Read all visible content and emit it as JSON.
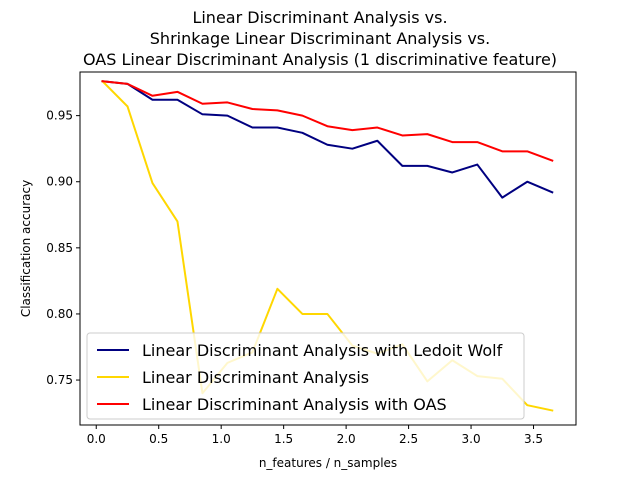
{
  "chart_data": {
    "type": "line",
    "title_lines": [
      "Linear Discriminant Analysis vs.",
      "Shrinkage Linear Discriminant Analysis vs.",
      "OAS Linear Discriminant Analysis (1 discriminative feature)"
    ],
    "xlabel": "n_features / n_samples",
    "ylabel": "Classification accuracy",
    "xlim": [
      -0.13,
      3.84
    ],
    "ylim": [
      0.716,
      0.983
    ],
    "xticks": [
      0.0,
      0.5,
      1.0,
      1.5,
      2.0,
      2.5,
      3.0,
      3.5
    ],
    "xtick_labels": [
      "0.0",
      "0.5",
      "1.0",
      "1.5",
      "2.0",
      "2.5",
      "3.0",
      "3.5"
    ],
    "yticks": [
      0.75,
      0.8,
      0.85,
      0.9,
      0.95
    ],
    "ytick_labels": [
      "0.75",
      "0.80",
      "0.85",
      "0.90",
      "0.95"
    ],
    "x": [
      0.05,
      0.25,
      0.45,
      0.65,
      0.85,
      1.05,
      1.25,
      1.45,
      1.65,
      1.85,
      2.05,
      2.25,
      2.45,
      2.65,
      2.85,
      3.05,
      3.25,
      3.45,
      3.65
    ],
    "legend_position": "lower-left",
    "series": [
      {
        "name": "Linear Discriminant Analysis with Ledoit Wolf",
        "color": "#000080",
        "values": [
          0.976,
          0.974,
          0.962,
          0.962,
          0.951,
          0.95,
          0.941,
          0.941,
          0.937,
          0.928,
          0.925,
          0.931,
          0.912,
          0.912,
          0.907,
          0.913,
          0.888,
          0.9,
          0.892
        ]
      },
      {
        "name": "Linear Discriminant Analysis",
        "color": "#ffd700",
        "values": [
          0.976,
          0.957,
          0.899,
          0.87,
          0.74,
          0.763,
          0.771,
          0.819,
          0.8,
          0.8,
          0.776,
          0.77,
          0.777,
          0.749,
          0.765,
          0.753,
          0.751,
          0.731,
          0.727
        ]
      },
      {
        "name": "Linear Discriminant Analysis with OAS",
        "color": "#ff0000",
        "values": [
          0.976,
          0.974,
          0.965,
          0.968,
          0.959,
          0.96,
          0.955,
          0.954,
          0.95,
          0.942,
          0.939,
          0.941,
          0.935,
          0.936,
          0.93,
          0.93,
          0.923,
          0.923,
          0.916
        ]
      }
    ]
  }
}
